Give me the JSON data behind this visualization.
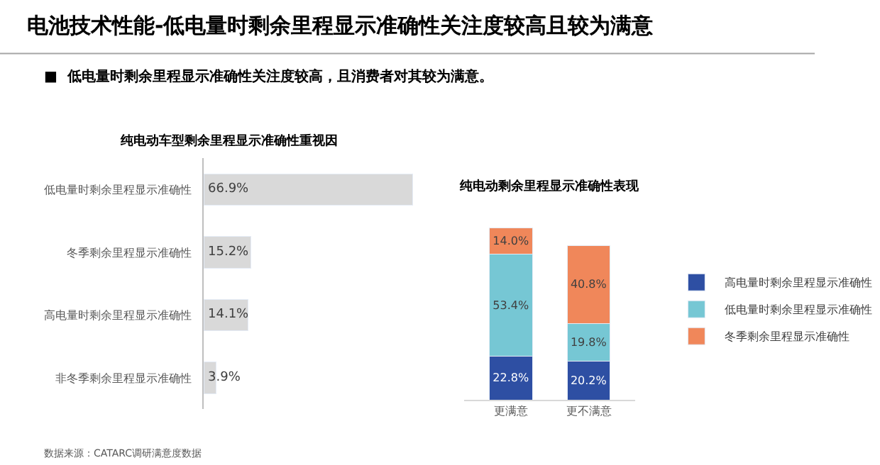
{
  "chart_data": [
    {
      "type": "bar",
      "orientation": "horizontal",
      "title": "纯电动车型剩余里程显示准确性重视因",
      "categories": [
        "低电量时剩余里程显示准确性",
        "冬季剩余里程显示准确性",
        "高电量时剩余里程显示准确性",
        "非冬季剩余里程显示准确性"
      ],
      "values": [
        66.9,
        15.2,
        14.1,
        3.9
      ],
      "value_labels": [
        "66.9%",
        "15.2%",
        "14.1%",
        "3.9%"
      ],
      "color": "#d9d9d9",
      "tick_labels": "y",
      "legend": false,
      "annotations": [
        "电池技术性能-低电量时剩余里程显示准确性关注度较高且较为满意",
        "■  低电量时剩余里程显示准确性关注度较高，且消费者对其较为满意。",
        "数据来源：CATARC调研满意度数据"
      ]
    },
    {
      "type": "bar",
      "stacked": true,
      "title": "纯电动剩余里程显示准确性表现",
      "categories": [
        "更满意",
        "更不满意"
      ],
      "tick_labels": "x",
      "legend": "right",
      "series": [
        {
          "name": "高电量时剩余里程显示准确性",
          "color": "#2e4fa3",
          "values": [
            22.8,
            20.2
          ],
          "value_labels": [
            "22.8%",
            "20.2%"
          ]
        },
        {
          "name": "低电量时剩余里程显示准确性",
          "color": "#76c7d4",
          "values": [
            53.4,
            19.8
          ],
          "value_labels": [
            "53.4%",
            "19.8%"
          ]
        },
        {
          "name": "冬季剩余里程显示准确性",
          "color": "#f0875a",
          "values": [
            14.0,
            40.8
          ],
          "value_labels": [
            "14.0%",
            "40.8%"
          ]
        }
      ]
    }
  ]
}
